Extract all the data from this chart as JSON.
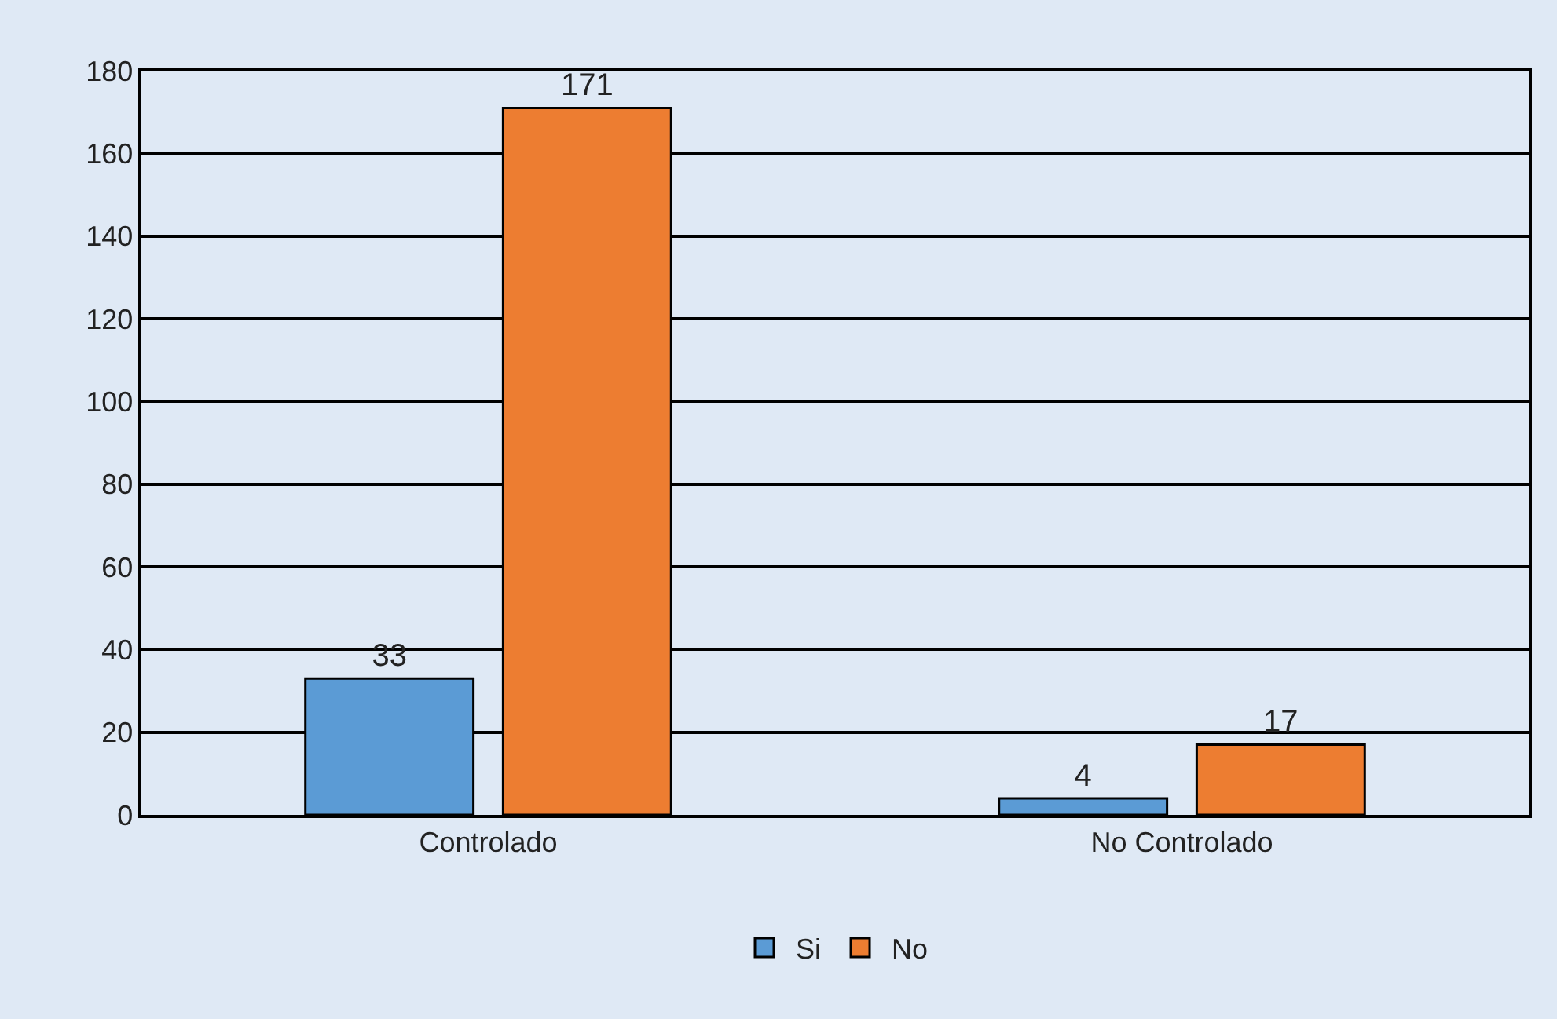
{
  "chart_data": {
    "type": "bar",
    "categories": [
      "Controlado",
      "No Controlado"
    ],
    "series": [
      {
        "name": "Si",
        "color": "#5b9bd5",
        "values": [
          33,
          4
        ]
      },
      {
        "name": "No",
        "color": "#ed7d31",
        "values": [
          171,
          17
        ]
      }
    ],
    "ylim": [
      0,
      180
    ],
    "yticks": [
      0,
      20,
      40,
      60,
      80,
      100,
      120,
      140,
      160,
      180
    ],
    "grid": "y",
    "legend": "bottom",
    "data_labels": true
  }
}
